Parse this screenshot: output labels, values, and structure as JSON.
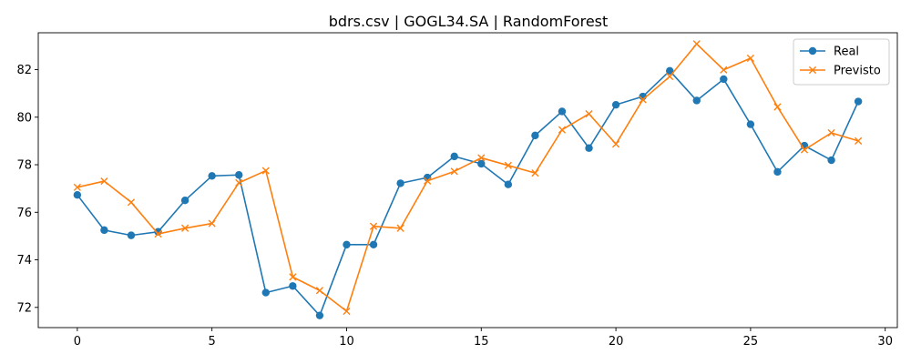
{
  "chart_data": {
    "type": "line",
    "title": "bdrs.csv | GOGL34.SA | RandomForest",
    "xlabel": "",
    "ylabel": "",
    "xlim": [
      -1.45,
      30.45
    ],
    "ylim": [
      71.15,
      83.55
    ],
    "xticks": [
      0,
      5,
      10,
      15,
      20,
      25,
      30
    ],
    "yticks": [
      72,
      74,
      76,
      78,
      80,
      82
    ],
    "grid": false,
    "legend_position": "upper right",
    "x": [
      0,
      1,
      2,
      3,
      4,
      5,
      6,
      7,
      8,
      9,
      10,
      11,
      12,
      13,
      14,
      15,
      16,
      17,
      18,
      19,
      20,
      21,
      22,
      23,
      24,
      25,
      26,
      27,
      28,
      29
    ],
    "series": [
      {
        "name": "Real",
        "color": "#1f77b4",
        "marker": "circle",
        "values": [
          76.73,
          75.25,
          75.03,
          75.18,
          76.5,
          77.53,
          77.57,
          72.62,
          72.9,
          71.66,
          74.64,
          74.64,
          77.22,
          77.46,
          78.35,
          78.04,
          77.17,
          79.23,
          80.24,
          78.7,
          80.52,
          80.87,
          81.95,
          80.7,
          81.6,
          79.7,
          77.7,
          78.8,
          78.19,
          80.66
        ]
      },
      {
        "name": "Previsto",
        "color": "#ff7f0e",
        "marker": "x",
        "values": [
          77.05,
          77.31,
          76.42,
          75.09,
          75.33,
          75.53,
          77.24,
          77.75,
          73.28,
          72.71,
          71.84,
          75.41,
          75.33,
          77.32,
          77.72,
          78.29,
          77.97,
          77.65,
          79.47,
          80.14,
          78.87,
          80.74,
          81.71,
          83.08,
          81.99,
          82.48,
          80.43,
          78.63,
          79.34,
          79.0
        ]
      }
    ]
  }
}
